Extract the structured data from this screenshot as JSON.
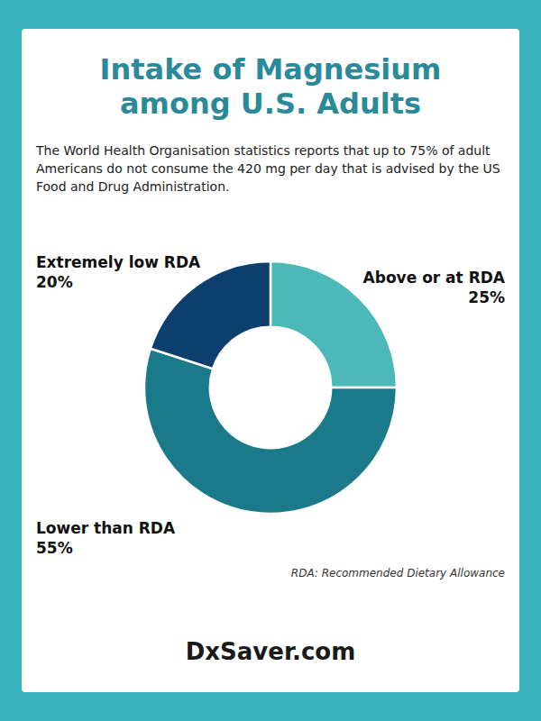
{
  "chart_data": {
    "type": "donut",
    "title": [
      "Intake of Magnesium",
      "among U.S. Adults"
    ],
    "subtitle": "The World Health Organisation statistics reports that up to 75% of adult Americans do not consume the 420 mg per day that is advised by the US Food and Drug Administration.",
    "categories": [
      "Above or at RDA",
      "Lower than RDA",
      "Extremely low RDA"
    ],
    "values": [
      25,
      55,
      20
    ],
    "value_labels": [
      "25%",
      "55%",
      "20%"
    ],
    "data_labels": true,
    "colors": [
      "#4db8b8",
      "#1a7a8a",
      "#0d3f6e"
    ],
    "annotations": [
      "RDA: Recommended Dietary Allowance",
      "DxSaver.com"
    ]
  }
}
